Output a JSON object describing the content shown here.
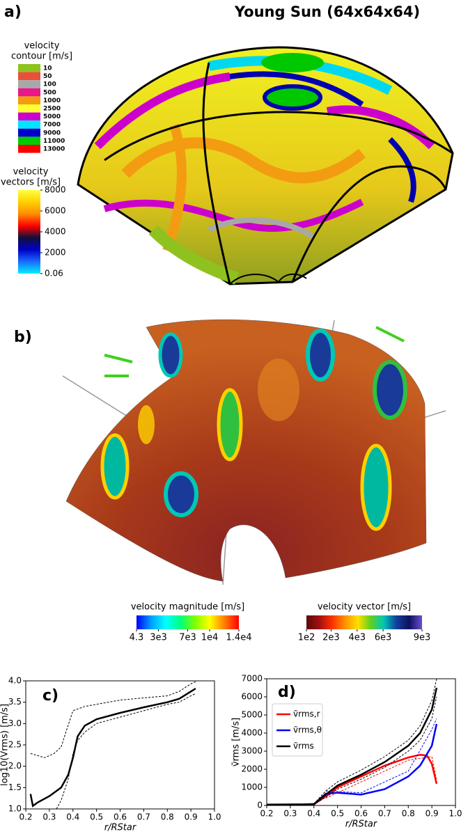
{
  "figure": {
    "title": "Young Sun (64x64x64)",
    "panel_a": {
      "label": "a)",
      "contour_legend": {
        "title": [
          "velocity",
          "contour [m/s]"
        ],
        "levels": [
          10,
          50,
          100,
          500,
          1000,
          2500,
          5000,
          7000,
          9000,
          11000,
          13000
        ],
        "colors": [
          "#8fc21e",
          "#e8503a",
          "#a8a8a8",
          "#e8178a",
          "#f39c12",
          "#ffff33",
          "#cc00cc",
          "#00e5ff",
          "#0000cc",
          "#00cc00",
          "#ff0000"
        ]
      },
      "vector_colorbar": {
        "title": [
          "velocity",
          "vectors [m/s]"
        ],
        "orientation": "vertical",
        "lim": [
          0.06,
          8000
        ],
        "ticks": [
          8000,
          6000,
          4000,
          2000,
          0.06
        ],
        "colors": [
          "#00f0ff",
          "#1a6cff",
          "#0000c8",
          "#10103a",
          "#ff0000",
          "#ff8c00",
          "#ffd000",
          "#ffff40"
        ]
      }
    },
    "panel_b": {
      "label": "b)",
      "magnitude_colorbar": {
        "title": "velocity magnitude [m/s]",
        "orientation": "horizontal",
        "lim": [
          4.3,
          14000
        ],
        "ticks": [
          4.3,
          {
            "value": 3000,
            "label": "3e3"
          },
          {
            "value": 7000,
            "label": "7e3"
          },
          {
            "value": 10000,
            "label": "1e4"
          },
          {
            "value": 14000,
            "label": "1.4e4"
          }
        ],
        "colors": [
          "#0000ff",
          "#00a0ff",
          "#00ffff",
          "#00ff80",
          "#80ff00",
          "#ffff00",
          "#ff8000",
          "#ff0000"
        ]
      },
      "vector_colorbar": {
        "title": "velocity vector [m/s]",
        "orientation": "horizontal",
        "lim": [
          100,
          9000
        ],
        "ticks": [
          {
            "value": 100,
            "label": "1e2"
          },
          {
            "value": 2000,
            "label": "2e3"
          },
          {
            "value": 4000,
            "label": "4e3"
          },
          {
            "value": 6000,
            "label": "6e3"
          },
          {
            "value": 9000,
            "label": "9e3"
          }
        ],
        "colors": [
          "#5a0a0a",
          "#a01010",
          "#ff3000",
          "#ff9000",
          "#ffe000",
          "#60d020",
          "#00c8b4",
          "#1040a0",
          "#101060",
          "#6a50d0"
        ]
      }
    }
  },
  "chart_data": [
    {
      "type": "line",
      "panel_label": "c)",
      "xlabel": "r/RStar",
      "ylabel": "log10(Vrms) [m/s]",
      "xlim": [
        0.2,
        1.0
      ],
      "xticks": [
        0.2,
        0.3,
        0.4,
        0.5,
        0.6,
        0.7,
        0.8,
        0.9,
        {
          "value": 1.0,
          "label": "1.0"
        }
      ],
      "ylim": [
        1.0,
        4.0
      ],
      "yticks": [
        {
          "value": 1.0,
          "label": "1.0"
        },
        1.5,
        {
          "value": 2.0,
          "label": "2.0"
        },
        2.5,
        {
          "value": 3.0,
          "label": "3.0"
        },
        3.5,
        {
          "value": 4.0,
          "label": "4.0"
        }
      ],
      "series": [
        {
          "color": "#000000",
          "dashed": false,
          "x": [
            0.22,
            0.23,
            0.25,
            0.3,
            0.35,
            0.38,
            0.4,
            0.42,
            0.45,
            0.5,
            0.6,
            0.7,
            0.8,
            0.85,
            0.9,
            0.92
          ],
          "values": [
            1.35,
            1.07,
            1.15,
            1.3,
            1.5,
            1.8,
            2.2,
            2.7,
            2.95,
            3.1,
            3.25,
            3.38,
            3.5,
            3.58,
            3.75,
            3.82
          ]
        },
        {
          "color": "#000000",
          "dashed": true,
          "x": [
            0.22,
            0.25,
            0.28,
            0.32,
            0.35,
            0.37,
            0.4,
            0.45,
            0.5,
            0.6,
            0.7,
            0.8,
            0.85,
            0.9,
            0.92
          ],
          "values": [
            2.3,
            2.25,
            2.2,
            2.3,
            2.45,
            2.8,
            3.3,
            3.4,
            3.45,
            3.55,
            3.6,
            3.65,
            3.75,
            3.93,
            3.98
          ]
        },
        {
          "color": "#000000",
          "dashed": true,
          "x": [
            0.33,
            0.35,
            0.38,
            0.4,
            0.42,
            0.45,
            0.5,
            0.6,
            0.7,
            0.8,
            0.85,
            0.9,
            0.92
          ],
          "values": [
            1.0,
            1.2,
            1.7,
            2.3,
            2.6,
            2.8,
            3.0,
            3.15,
            3.3,
            3.45,
            3.5,
            3.65,
            3.7
          ]
        }
      ]
    },
    {
      "type": "line",
      "panel_label": "d)",
      "xlabel": "r/RStar",
      "ylabel": "ṽrms [m/s]",
      "legend": "upper left",
      "xlim": [
        0.2,
        1.0
      ],
      "xticks": [
        0.2,
        0.3,
        0.4,
        0.5,
        0.6,
        0.7,
        0.8,
        0.9,
        {
          "value": 1.0,
          "label": "1.0"
        }
      ],
      "ylim": [
        0,
        7000
      ],
      "yticks": [
        0,
        1000,
        2000,
        3000,
        4000,
        5000,
        6000,
        7000
      ],
      "series": [
        {
          "name": "ṽrms,r",
          "color": "#ff0000",
          "dashed": false,
          "x": [
            0.2,
            0.4,
            0.45,
            0.5,
            0.6,
            0.7,
            0.8,
            0.85,
            0.88,
            0.9,
            0.92
          ],
          "values": [
            50,
            60,
            500,
            1000,
            1600,
            2200,
            2650,
            2800,
            2750,
            2300,
            1200
          ]
        },
        {
          "name": "ṽrms,θ",
          "color": "#0000ff",
          "dashed": false,
          "x": [
            0.2,
            0.4,
            0.45,
            0.5,
            0.6,
            0.7,
            0.8,
            0.85,
            0.9,
            0.92
          ],
          "values": [
            50,
            60,
            650,
            700,
            600,
            900,
            1600,
            2200,
            3300,
            4500
          ]
        },
        {
          "name": "ṽrms",
          "color": "#000000",
          "dashed": false,
          "x": [
            0.2,
            0.35,
            0.4,
            0.45,
            0.5,
            0.6,
            0.7,
            0.8,
            0.85,
            0.9,
            0.92
          ],
          "values": [
            50,
            50,
            80,
            600,
            1100,
            1700,
            2400,
            3300,
            4000,
            5300,
            6500
          ]
        },
        {
          "color": "#ff0000",
          "dashed": true,
          "x": [
            0.45,
            0.6,
            0.8,
            0.9,
            0.92
          ],
          "values": [
            400,
            1300,
            2500,
            2700,
            1400
          ]
        },
        {
          "color": "#0000ff",
          "dashed": true,
          "x": [
            0.45,
            0.6,
            0.8,
            0.9,
            0.92
          ],
          "values": [
            800,
            700,
            1900,
            4200,
            4800
          ]
        },
        {
          "color": "#000000",
          "dashed": true,
          "x": [
            0.4,
            0.45,
            0.5,
            0.6,
            0.7,
            0.8,
            0.85,
            0.9,
            0.92
          ],
          "values": [
            100,
            800,
            1300,
            1950,
            2700,
            3600,
            4400,
            5800,
            7000
          ]
        },
        {
          "color": "#000000",
          "dashed": true,
          "x": [
            0.4,
            0.45,
            0.5,
            0.6,
            0.7,
            0.8,
            0.85,
            0.9,
            0.92
          ],
          "values": [
            60,
            450,
            900,
            1450,
            2100,
            3000,
            3600,
            4800,
            6000
          ]
        }
      ]
    }
  ]
}
